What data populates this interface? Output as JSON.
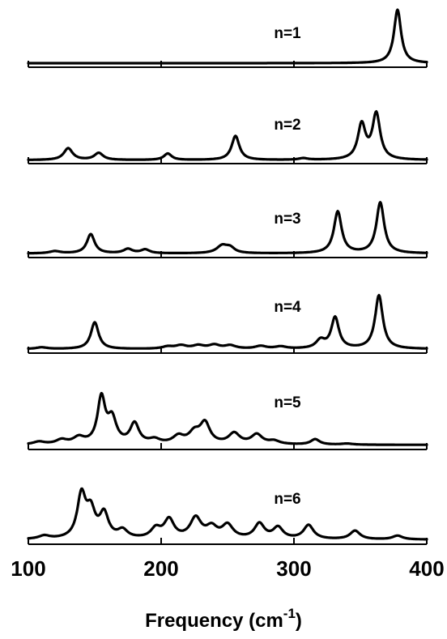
{
  "chart_data": {
    "type": "line",
    "xlabel": "Frequency (cm",
    "xlabel_superscript": "-1",
    "xlabel_suffix": ")",
    "xlim": [
      100,
      400
    ],
    "x_ticks": [
      "100",
      "200",
      "300",
      "400"
    ],
    "panels": [
      {
        "name": "n=1",
        "peaks": [
          [
            378,
            1.0,
            3.2
          ]
        ],
        "baseline": 0.03
      },
      {
        "name": "n=2",
        "peaks": [
          [
            130,
            0.22,
            4
          ],
          [
            153,
            0.13,
            4
          ],
          [
            205,
            0.12,
            3.5
          ],
          [
            256,
            0.45,
            3.5
          ],
          [
            307,
            0.03,
            4
          ],
          [
            351,
            0.65,
            3.5
          ],
          [
            362,
            0.85,
            3.5
          ]
        ],
        "baseline": 0.02
      },
      {
        "name": "n=3",
        "peaks": [
          [
            120,
            0.04,
            5
          ],
          [
            147,
            0.36,
            3.5
          ],
          [
            175,
            0.08,
            4
          ],
          [
            188,
            0.07,
            4
          ],
          [
            246,
            0.14,
            5
          ],
          [
            252,
            0.09,
            4
          ],
          [
            333,
            0.78,
            3.5
          ],
          [
            365,
            0.95,
            3.5
          ]
        ],
        "baseline": 0.03
      },
      {
        "name": "n=4",
        "peaks": [
          [
            110,
            0.03,
            5
          ],
          [
            150,
            0.5,
            3.5
          ],
          [
            205,
            0.04,
            5
          ],
          [
            215,
            0.06,
            5
          ],
          [
            228,
            0.06,
            5
          ],
          [
            240,
            0.07,
            5
          ],
          [
            252,
            0.06,
            5
          ],
          [
            275,
            0.05,
            5
          ],
          [
            290,
            0.04,
            5
          ],
          [
            320,
            0.15,
            4
          ],
          [
            331,
            0.58,
            3.5
          ],
          [
            364,
            1.0,
            3.5
          ]
        ],
        "baseline": 0.03
      },
      {
        "name": "n=5",
        "peaks": [
          [
            108,
            0.05,
            5
          ],
          [
            125,
            0.08,
            5
          ],
          [
            138,
            0.12,
            5
          ],
          [
            155,
            0.85,
            3.5
          ],
          [
            163,
            0.45,
            4
          ],
          [
            180,
            0.38,
            4
          ],
          [
            195,
            0.08,
            5
          ],
          [
            213,
            0.14,
            5
          ],
          [
            225,
            0.2,
            5
          ],
          [
            233,
            0.38,
            4.5
          ],
          [
            255,
            0.2,
            5
          ],
          [
            272,
            0.18,
            5
          ],
          [
            285,
            0.06,
            5
          ],
          [
            316,
            0.1,
            4
          ],
          [
            340,
            0.02,
            5
          ]
        ],
        "baseline": 0.04
      },
      {
        "name": "n=6",
        "peaks": [
          [
            112,
            0.06,
            5
          ],
          [
            140,
            0.8,
            3.8
          ],
          [
            147,
            0.48,
            4
          ],
          [
            157,
            0.45,
            4
          ],
          [
            171,
            0.15,
            4.5
          ],
          [
            196,
            0.18,
            4.5
          ],
          [
            206,
            0.35,
            4.5
          ],
          [
            226,
            0.38,
            5
          ],
          [
            238,
            0.2,
            5
          ],
          [
            250,
            0.25,
            5
          ],
          [
            274,
            0.28,
            4.5
          ],
          [
            288,
            0.21,
            4.5
          ],
          [
            311,
            0.26,
            4.5
          ],
          [
            346,
            0.16,
            4.5
          ],
          [
            378,
            0.07,
            4.5
          ]
        ],
        "baseline": 0.04
      }
    ]
  }
}
